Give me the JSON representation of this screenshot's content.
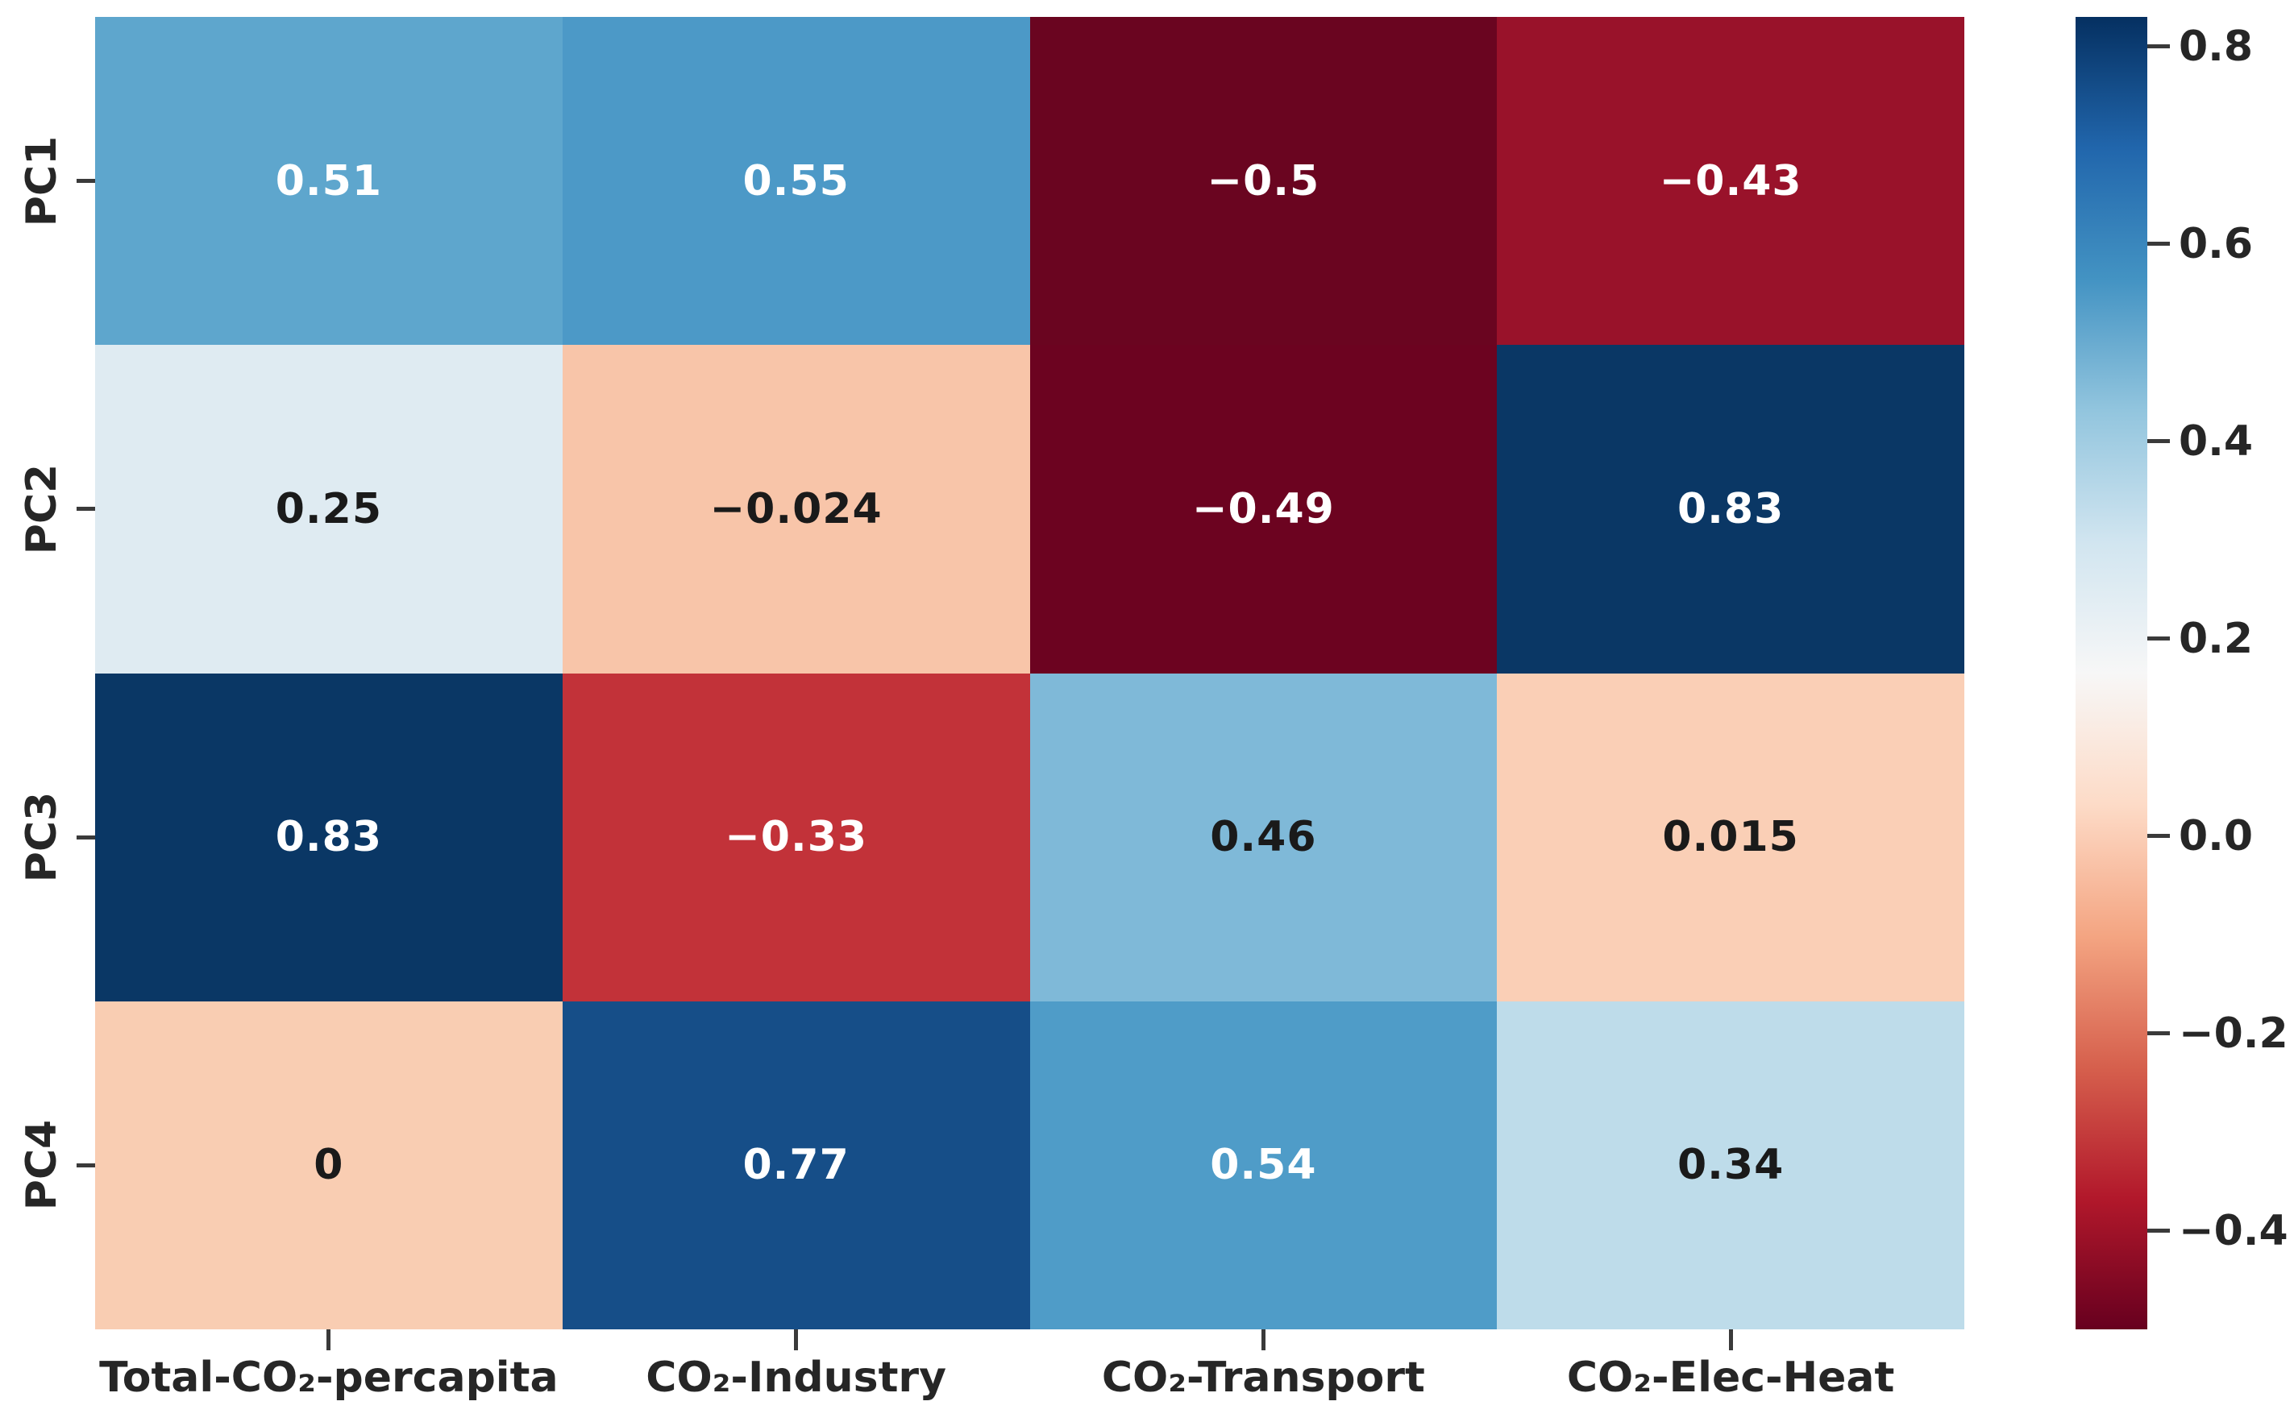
{
  "chart_data": {
    "type": "heatmap",
    "title": "",
    "xlabel": "",
    "ylabel": "",
    "rows": [
      "PC1",
      "PC2",
      "PC3",
      "PC4"
    ],
    "columns": [
      "Total-CO₂-percapita",
      "CO₂-Industry",
      "CO₂-Transport",
      "CO₂-Elec-Heat"
    ],
    "values": [
      [
        0.51,
        0.55,
        -0.5,
        -0.43
      ],
      [
        0.25,
        -0.024,
        -0.49,
        0.83
      ],
      [
        0.83,
        -0.33,
        0.46,
        0.015
      ],
      [
        0,
        0.77,
        0.54,
        0.34
      ]
    ],
    "cell_labels": [
      [
        "0.51",
        "0.55",
        "−0.5",
        "−0.43"
      ],
      [
        "0.25",
        "−0.024",
        "−0.49",
        "0.83"
      ],
      [
        "0.83",
        "−0.33",
        "0.46",
        "0.015"
      ],
      [
        "0",
        "0.77",
        "0.54",
        "0.34"
      ]
    ],
    "cell_colors": [
      [
        "#5ea6cd",
        "#4c99c7",
        "#6a0520",
        "#99122a"
      ],
      [
        "#dfebf2",
        "#f8c5a9",
        "#6c0320",
        "#0a3765"
      ],
      [
        "#0a3765",
        "#c23239",
        "#7fb9d8",
        "#facfb6"
      ],
      [
        "#f9cdb2",
        "#164e88",
        "#4f9cc8",
        "#bedcea"
      ]
    ],
    "cell_text_colors": [
      [
        "#ffffff",
        "#ffffff",
        "#ffffff",
        "#ffffff"
      ],
      [
        "#1a1a1a",
        "#1a1a1a",
        "#ffffff",
        "#ffffff"
      ],
      [
        "#ffffff",
        "#ffffff",
        "#1a1a1a",
        "#1a1a1a"
      ],
      [
        "#1a1a1a",
        "#ffffff",
        "#ffffff",
        "#1a1a1a"
      ]
    ],
    "grid": false,
    "legend_position": "right-colorbar",
    "colorbar": {
      "colormap": "RdBu",
      "vmin": -0.5,
      "vmax": 0.83,
      "ticks": [
        0.8,
        0.6,
        0.4,
        0.2,
        0.0,
        -0.2,
        -0.4
      ],
      "tick_labels": [
        "0.8",
        "0.6",
        "0.4",
        "0.2",
        "0.0",
        "−0.2",
        "−0.4"
      ],
      "gradient_stops_top_to_bottom": [
        "#053061",
        "#2166ac",
        "#4393c3",
        "#92c5de",
        "#d1e5f0",
        "#f7f7f7",
        "#fddbc7",
        "#f4a582",
        "#d6604d",
        "#b2182b",
        "#67001f"
      ]
    }
  },
  "styles": {
    "background": "#ffffff",
    "tick_color": "#3a3a3a",
    "label_color": "#262626"
  }
}
